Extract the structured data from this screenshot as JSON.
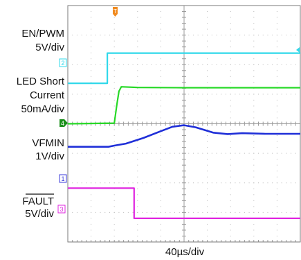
{
  "chart_data": {
    "type": "line",
    "title": "",
    "xlabel": "40µs/div",
    "x_range_us": [
      0,
      400
    ],
    "grid": "dotted 10x8 divisions",
    "trigger_marker": "T",
    "channel_labels": [
      {
        "text": [
          "EN/PWM",
          "5V/div"
        ],
        "marker": "2",
        "color": "#2fd8ea"
      },
      {
        "text": [
          "LED Short",
          "Current",
          "50mA/div"
        ],
        "marker": "4",
        "color": "#1fae1f"
      },
      {
        "text": [
          "VFMIN",
          "1V/div"
        ],
        "marker": "",
        "color": "#1f2fd8"
      },
      {
        "text": [
          "FAULT",
          "5V/div"
        ],
        "marker": "1",
        "marker2": "3",
        "color": "#e026e0",
        "overline": true
      }
    ],
    "series": [
      {
        "name": "EN/PWM",
        "color": "#2fd8ea",
        "unit": "div",
        "points": [
          [
            0,
            5.37
          ],
          [
            68,
            5.37
          ],
          [
            68,
            6.39
          ],
          [
            400,
            6.39
          ]
        ]
      },
      {
        "name": "LED Short Current",
        "color": "#27d927",
        "unit": "div",
        "points": [
          [
            0,
            4.0
          ],
          [
            80,
            4.02
          ],
          [
            84,
            4.6
          ],
          [
            88,
            5.1
          ],
          [
            92,
            5.25
          ],
          [
            120,
            5.23
          ],
          [
            200,
            5.22
          ],
          [
            300,
            5.22
          ],
          [
            400,
            5.22
          ]
        ]
      },
      {
        "name": "VFMIN",
        "color": "#1f2fd8",
        "unit": "div",
        "points": [
          [
            0,
            3.22
          ],
          [
            70,
            3.22
          ],
          [
            80,
            3.26
          ],
          [
            100,
            3.33
          ],
          [
            130,
            3.52
          ],
          [
            160,
            3.75
          ],
          [
            180,
            3.9
          ],
          [
            200,
            3.95
          ],
          [
            220,
            3.88
          ],
          [
            250,
            3.7
          ],
          [
            275,
            3.65
          ],
          [
            300,
            3.68
          ],
          [
            340,
            3.66
          ],
          [
            400,
            3.66
          ]
        ]
      },
      {
        "name": "FAULT",
        "color": "#e026e0",
        "unit": "div",
        "points": [
          [
            0,
            1.82
          ],
          [
            114,
            1.82
          ],
          [
            114,
            0.8
          ],
          [
            400,
            0.8
          ]
        ]
      }
    ]
  }
}
